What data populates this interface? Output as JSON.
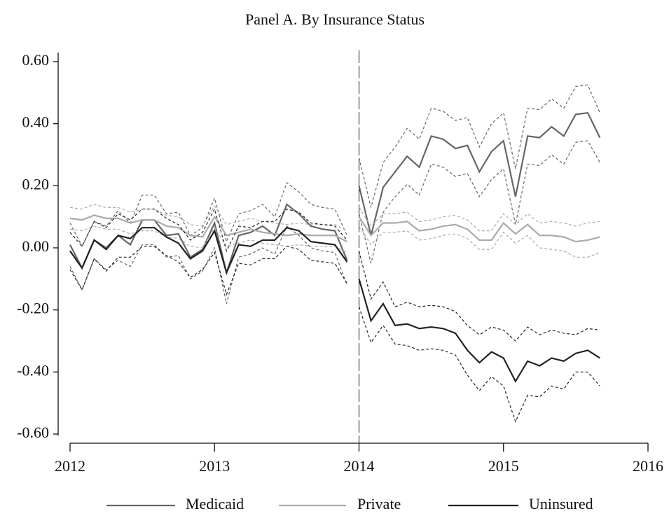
{
  "chart_data": {
    "type": "line",
    "title": "Panel A. By Insurance Status",
    "x": [
      2012,
      2012.083,
      2012.167,
      2012.25,
      2012.333,
      2012.417,
      2012.5,
      2012.583,
      2012.667,
      2012.75,
      2012.833,
      2012.917,
      2013,
      2013.083,
      2013.167,
      2013.25,
      2013.333,
      2013.417,
      2013.5,
      2013.583,
      2013.667,
      2013.75,
      2013.833,
      2013.917,
      2014,
      2014.083,
      2014.167,
      2014.25,
      2014.333,
      2014.417,
      2014.5,
      2014.583,
      2014.667,
      2014.75,
      2014.833,
      2014.917,
      2015,
      2015.083,
      2015.167,
      2015.25,
      2015.333,
      2015.417,
      2015.5,
      2015.583,
      2015.667
    ],
    "series": [
      {
        "name": "Medicaid",
        "color": "#666666",
        "values": [
          0.01,
          -0.065,
          0.025,
          0.0,
          0.04,
          0.01,
          0.09,
          0.09,
          0.04,
          0.045,
          -0.03,
          -0.005,
          0.08,
          -0.08,
          0.04,
          0.05,
          0.07,
          0.04,
          0.14,
          0.11,
          0.07,
          0.06,
          0.055,
          -0.04,
          0.2,
          0.04,
          0.195,
          0.245,
          0.295,
          0.26,
          0.36,
          0.35,
          0.32,
          0.33,
          0.245,
          0.31,
          0.345,
          0.165,
          0.36,
          0.355,
          0.39,
          0.36,
          0.43,
          0.435,
          0.355
        ],
        "errors": [
          0.07,
          0.07,
          0.06,
          0.07,
          0.08,
          0.07,
          0.08,
          0.08,
          0.07,
          0.07,
          0.07,
          0.07,
          0.08,
          0.1,
          0.07,
          0.07,
          0.07,
          0.06,
          0.07,
          0.07,
          0.07,
          0.07,
          0.07,
          0.08,
          0.09,
          0.09,
          0.08,
          0.08,
          0.09,
          0.09,
          0.09,
          0.09,
          0.09,
          0.09,
          0.08,
          0.09,
          0.09,
          0.09,
          0.09,
          0.09,
          0.09,
          0.09,
          0.09,
          0.09,
          0.08
        ]
      },
      {
        "name": "Private",
        "color": "#aaaaaa",
        "values": [
          0.095,
          0.09,
          0.105,
          0.095,
          0.095,
          0.08,
          0.09,
          0.09,
          0.07,
          0.065,
          0.04,
          0.035,
          0.1,
          0.04,
          0.05,
          0.06,
          0.05,
          0.045,
          0.04,
          0.045,
          0.04,
          0.04,
          0.04,
          0.02,
          0.1,
          0.04,
          0.08,
          0.08,
          0.085,
          0.055,
          0.06,
          0.07,
          0.075,
          0.06,
          0.025,
          0.025,
          0.08,
          0.045,
          0.075,
          0.04,
          0.04,
          0.035,
          0.02,
          0.025,
          0.035
        ],
        "errors": [
          0.035,
          0.035,
          0.035,
          0.035,
          0.035,
          0.035,
          0.035,
          0.035,
          0.035,
          0.035,
          0.035,
          0.035,
          0.035,
          0.035,
          0.035,
          0.035,
          0.035,
          0.035,
          0.035,
          0.035,
          0.035,
          0.035,
          0.035,
          0.035,
          0.03,
          0.03,
          0.03,
          0.03,
          0.03,
          0.03,
          0.03,
          0.03,
          0.03,
          0.03,
          0.03,
          0.03,
          0.03,
          0.03,
          0.035,
          0.04,
          0.045,
          0.045,
          0.05,
          0.055,
          0.05
        ]
      },
      {
        "name": "Uninsured",
        "color": "#222222",
        "values": [
          -0.01,
          -0.065,
          0.025,
          -0.005,
          0.04,
          0.03,
          0.065,
          0.065,
          0.035,
          0.015,
          -0.035,
          -0.01,
          0.055,
          -0.08,
          0.01,
          0.005,
          0.025,
          0.025,
          0.065,
          0.055,
          0.02,
          0.015,
          0.01,
          -0.045,
          -0.1,
          -0.235,
          -0.18,
          -0.25,
          -0.245,
          -0.26,
          -0.255,
          -0.26,
          -0.275,
          -0.33,
          -0.37,
          -0.335,
          -0.355,
          -0.43,
          -0.365,
          -0.38,
          -0.355,
          -0.365,
          -0.34,
          -0.33,
          -0.355
        ],
        "errors": [
          0.06,
          0.07,
          0.06,
          0.07,
          0.07,
          0.06,
          0.06,
          0.06,
          0.06,
          0.06,
          0.06,
          0.06,
          0.07,
          0.07,
          0.06,
          0.06,
          0.06,
          0.06,
          0.06,
          0.06,
          0.06,
          0.06,
          0.06,
          0.07,
          0.09,
          0.07,
          0.07,
          0.06,
          0.07,
          0.07,
          0.07,
          0.07,
          0.07,
          0.08,
          0.09,
          0.08,
          0.09,
          0.13,
          0.11,
          0.1,
          0.09,
          0.09,
          0.06,
          0.07,
          0.09
        ]
      }
    ],
    "xlim": [
      2012,
      2016
    ],
    "xticks": [
      2012,
      2013,
      2014,
      2015,
      2016
    ],
    "ylim": [
      -0.6,
      0.6
    ],
    "yticks": [
      {
        "value": 0.6,
        "label": "0.60"
      },
      {
        "value": 0.4,
        "label": "0.40"
      },
      {
        "value": 0.2,
        "label": "0.20"
      },
      {
        "value": 0,
        "label": "0.00"
      },
      {
        "value": -0.2,
        "label": "-0.20"
      },
      {
        "value": -0.4,
        "label": "-0.40"
      },
      {
        "value": -0.6,
        "label": "-0.60"
      }
    ],
    "vline": 2014,
    "lines_break_at_vline": true,
    "grid": false,
    "legend": "bottom"
  }
}
